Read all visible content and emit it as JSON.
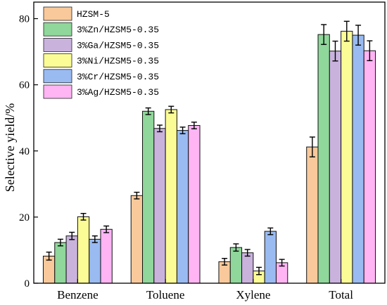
{
  "chart_data": {
    "type": "bar",
    "title": "",
    "xlabel": "",
    "ylabel": "Selective yield/%",
    "ylim": [
      0,
      85
    ],
    "yticks": [
      0,
      20,
      40,
      60,
      80
    ],
    "categories": [
      "Benzene",
      "Toluene",
      "Xylene",
      "Total"
    ],
    "legend_position": "top-left",
    "grid": false,
    "series": [
      {
        "name": "HZSM-5",
        "color": "#f9c99b",
        "values": [
          8.2,
          26.5,
          6.5,
          41.2
        ],
        "errors": [
          1.2,
          1.0,
          1.0,
          3.0
        ]
      },
      {
        "name": "3%Zn/HZSM5-0.35",
        "color": "#8fd79a",
        "values": [
          12.3,
          52.0,
          10.8,
          75.2
        ],
        "errors": [
          1.0,
          1.0,
          1.1,
          3.0
        ]
      },
      {
        "name": "3%Ga/HZSM5-0.35",
        "color": "#c9b3dd",
        "values": [
          14.3,
          46.8,
          9.2,
          70.2
        ],
        "errors": [
          1.1,
          1.0,
          1.0,
          3.0
        ]
      },
      {
        "name": "3%Ni/HZSM5-0.35",
        "color": "#fcfc96",
        "values": [
          20.1,
          52.5,
          3.7,
          76.2
        ],
        "errors": [
          1.0,
          1.0,
          1.1,
          3.0
        ]
      },
      {
        "name": "3%Cr/HZSM5-0.35",
        "color": "#99bbf2",
        "values": [
          13.3,
          46.2,
          15.7,
          75.0
        ],
        "errors": [
          1.0,
          1.0,
          1.0,
          3.0
        ]
      },
      {
        "name": "3%Ag/HZSM5-0.35",
        "color": "#ffb4f4",
        "values": [
          16.3,
          47.7,
          6.2,
          70.3
        ],
        "errors": [
          1.0,
          1.0,
          1.0,
          3.0
        ]
      }
    ]
  }
}
